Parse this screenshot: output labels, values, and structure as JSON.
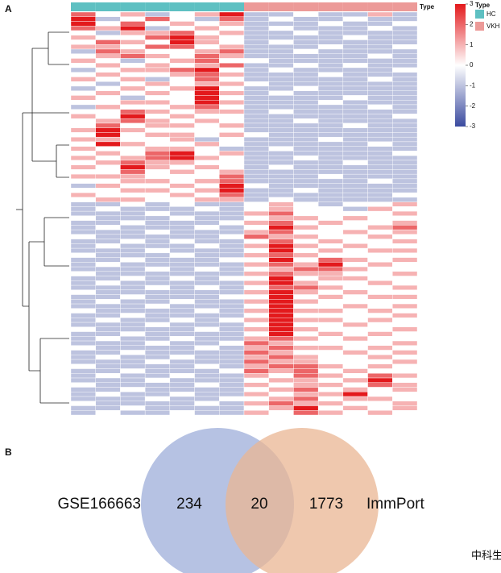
{
  "heatmap": {
    "panel_label": "A",
    "annotation_title": "Type",
    "legend_title": "Type",
    "groups": [
      {
        "name": "HC",
        "color": "#5ec0c2"
      },
      {
        "name": "VKH",
        "color": "#ec9a98"
      }
    ],
    "column_group": [
      0,
      0,
      0,
      0,
      0,
      0,
      0,
      1,
      1,
      1,
      1,
      1,
      1,
      1
    ],
    "scale_lim": [
      -3,
      3
    ],
    "scale_ticks": [
      3,
      2,
      1,
      0,
      -1,
      -2,
      -3
    ],
    "colors": {
      "low": "#3a4a9f",
      "mid": "#ffffff",
      "high": "#e3191c"
    },
    "values": [
      [
        2,
        0,
        1,
        -1,
        0,
        1,
        3,
        -1,
        -1,
        0,
        -1,
        -1,
        1,
        -1
      ],
      [
        3,
        -1,
        0,
        2,
        0,
        -1,
        2,
        -1,
        0,
        -1,
        -1,
        0,
        -1,
        -1
      ],
      [
        3,
        0,
        2,
        0,
        1,
        0,
        1,
        -1,
        -1,
        -1,
        0,
        -1,
        -1,
        0
      ],
      [
        2,
        1,
        3,
        -1,
        0,
        1,
        0,
        -1,
        0,
        -1,
        -1,
        -1,
        0,
        -1
      ],
      [
        0,
        -1,
        1,
        1,
        2,
        0,
        1,
        -1,
        -1,
        0,
        -1,
        -1,
        -1,
        -1
      ],
      [
        1,
        0,
        0,
        2,
        3,
        1,
        0,
        -1,
        -1,
        -1,
        -1,
        0,
        -1,
        -1
      ],
      [
        0,
        2,
        1,
        0,
        3,
        1,
        0,
        -1,
        0,
        -1,
        -1,
        -1,
        -1,
        -1
      ],
      [
        1,
        1,
        0,
        2,
        2,
        0,
        1,
        -1,
        -1,
        -1,
        0,
        -1,
        -1,
        0
      ],
      [
        -1,
        2,
        1,
        0,
        0,
        1,
        2,
        -1,
        -1,
        0,
        -1,
        -1,
        -1,
        -1
      ],
      [
        0,
        1,
        2,
        1,
        0,
        2,
        1,
        -1,
        -1,
        -1,
        -1,
        -1,
        0,
        -1
      ],
      [
        1,
        0,
        -1,
        0,
        1,
        2,
        0,
        0,
        -1,
        -1,
        -1,
        -1,
        -1,
        -1
      ],
      [
        0,
        1,
        0,
        1,
        0,
        1,
        2,
        -1,
        -1,
        0,
        -1,
        0,
        -1,
        -1
      ],
      [
        -1,
        0,
        1,
        1,
        2,
        3,
        0,
        -1,
        0,
        -1,
        -1,
        -1,
        -1,
        0
      ],
      [
        0,
        1,
        0,
        0,
        1,
        2,
        1,
        -1,
        -1,
        -1,
        0,
        -1,
        -1,
        -1
      ],
      [
        1,
        0,
        1,
        -1,
        0,
        2,
        0,
        -1,
        -1,
        -1,
        -1,
        -1,
        0,
        -1
      ],
      [
        0,
        -1,
        0,
        1,
        0,
        1,
        1,
        0,
        -1,
        -1,
        -1,
        -1,
        -1,
        -1
      ],
      [
        -1,
        0,
        1,
        0,
        1,
        3,
        0,
        -1,
        -1,
        0,
        -1,
        -1,
        -1,
        -1
      ],
      [
        0,
        1,
        0,
        1,
        0,
        3,
        1,
        -1,
        0,
        -1,
        -1,
        -1,
        -1,
        -1
      ],
      [
        1,
        0,
        -1,
        0,
        0,
        3,
        0,
        -1,
        -1,
        -1,
        -1,
        0,
        -1,
        -1
      ],
      [
        0,
        0,
        1,
        1,
        0,
        3,
        1,
        -1,
        -1,
        -1,
        0,
        -1,
        -1,
        -1
      ],
      [
        -1,
        1,
        0,
        0,
        1,
        2,
        0,
        -1,
        -1,
        -1,
        -1,
        -1,
        0,
        -1
      ],
      [
        0,
        0,
        2,
        1,
        0,
        1,
        1,
        -1,
        0,
        -1,
        -1,
        -1,
        -1,
        -1
      ],
      [
        1,
        0,
        3,
        0,
        1,
        0,
        0,
        -1,
        -1,
        -1,
        -1,
        -1,
        -1,
        0
      ],
      [
        0,
        1,
        2,
        1,
        0,
        1,
        0,
        -1,
        -1,
        0,
        -1,
        -1,
        -1,
        -1
      ],
      [
        0,
        2,
        0,
        1,
        1,
        0,
        1,
        -1,
        -1,
        -1,
        -1,
        0,
        -1,
        -1
      ],
      [
        1,
        3,
        1,
        0,
        0,
        0,
        0,
        -1,
        -1,
        -1,
        -1,
        -1,
        -1,
        -1
      ],
      [
        0,
        3,
        0,
        1,
        1,
        0,
        1,
        0,
        -1,
        -1,
        -1,
        -1,
        -1,
        -1
      ],
      [
        1,
        1,
        0,
        0,
        1,
        -1,
        0,
        -1,
        -1,
        -1,
        0,
        -1,
        -1,
        -1
      ],
      [
        0,
        3,
        1,
        0,
        0,
        1,
        0,
        -1,
        -1,
        -1,
        -1,
        -1,
        0,
        -1
      ],
      [
        1,
        0,
        0,
        1,
        1,
        0,
        -1,
        -1,
        0,
        -1,
        -1,
        -1,
        -1,
        -1
      ],
      [
        0,
        1,
        0,
        2,
        3,
        0,
        1,
        -1,
        -1,
        -1,
        -1,
        -1,
        -1,
        0
      ],
      [
        1,
        0,
        1,
        2,
        3,
        1,
        0,
        -1,
        -1,
        0,
        -1,
        -1,
        -1,
        -1
      ],
      [
        0,
        1,
        2,
        1,
        1,
        0,
        0,
        -1,
        -1,
        -1,
        -1,
        0,
        -1,
        -1
      ],
      [
        1,
        0,
        3,
        1,
        0,
        1,
        0,
        -1,
        0,
        -1,
        -1,
        -1,
        -1,
        -1
      ],
      [
        0,
        0,
        2,
        0,
        1,
        0,
        1,
        -1,
        -1,
        -1,
        -1,
        -1,
        -1,
        -1
      ],
      [
        1,
        1,
        1,
        0,
        0,
        0,
        2,
        -1,
        -1,
        -1,
        0,
        -1,
        -1,
        -1
      ],
      [
        0,
        0,
        1,
        1,
        0,
        1,
        2,
        -1,
        -1,
        -1,
        -1,
        -1,
        0,
        -1
      ],
      [
        -1,
        1,
        0,
        0,
        1,
        0,
        3,
        0,
        -1,
        -1,
        -1,
        -1,
        -1,
        -1
      ],
      [
        0,
        0,
        1,
        1,
        0,
        1,
        3,
        -1,
        -1,
        0,
        -1,
        -1,
        -1,
        -1
      ],
      [
        1,
        0,
        0,
        0,
        1,
        0,
        2,
        -1,
        -1,
        -1,
        -1,
        -1,
        -1,
        0
      ],
      [
        0,
        1,
        1,
        0,
        0,
        1,
        1,
        -1,
        0,
        -1,
        -1,
        -1,
        -1,
        -1
      ],
      [
        -1,
        -1,
        0,
        -1,
        0,
        -1,
        -1,
        0,
        1,
        0,
        -1,
        0,
        0,
        1
      ],
      [
        -1,
        0,
        -1,
        -1,
        -1,
        0,
        -1,
        0,
        1,
        0,
        0,
        -1,
        1,
        0
      ],
      [
        -1,
        -1,
        -1,
        0,
        -1,
        -1,
        -1,
        1,
        2,
        0,
        0,
        0,
        0,
        1
      ],
      [
        0,
        -1,
        -1,
        -1,
        0,
        -1,
        -1,
        0,
        1,
        1,
        0,
        1,
        0,
        0
      ],
      [
        -1,
        -1,
        0,
        -1,
        -1,
        -1,
        0,
        1,
        2,
        0,
        1,
        0,
        0,
        1
      ],
      [
        -1,
        0,
        -1,
        -1,
        -1,
        0,
        -1,
        0,
        3,
        1,
        0,
        0,
        1,
        2
      ],
      [
        -1,
        -1,
        -1,
        0,
        -1,
        -1,
        -1,
        1,
        2,
        0,
        0,
        1,
        0,
        1
      ],
      [
        0,
        -1,
        -1,
        -1,
        -1,
        -1,
        0,
        2,
        1,
        1,
        0,
        0,
        1,
        0
      ],
      [
        -1,
        -1,
        0,
        -1,
        0,
        -1,
        -1,
        0,
        2,
        0,
        1,
        0,
        0,
        1
      ],
      [
        -1,
        0,
        -1,
        -1,
        -1,
        0,
        -1,
        1,
        3,
        1,
        0,
        1,
        0,
        0
      ],
      [
        -1,
        -1,
        -1,
        0,
        -1,
        -1,
        -1,
        0,
        3,
        0,
        1,
        0,
        1,
        1
      ],
      [
        0,
        -1,
        -1,
        -1,
        0,
        -1,
        -1,
        1,
        2,
        1,
        0,
        0,
        0,
        0
      ],
      [
        -1,
        -1,
        0,
        -1,
        -1,
        -1,
        0,
        0,
        3,
        0,
        2,
        1,
        0,
        1
      ],
      [
        -1,
        0,
        -1,
        -1,
        -1,
        -1,
        -1,
        1,
        2,
        1,
        3,
        0,
        1,
        0
      ],
      [
        -1,
        -1,
        -1,
        0,
        -1,
        0,
        -1,
        0,
        1,
        2,
        2,
        1,
        0,
        0
      ],
      [
        0,
        -1,
        -1,
        -1,
        -1,
        -1,
        -1,
        1,
        2,
        1,
        1,
        0,
        0,
        1
      ],
      [
        -1,
        -1,
        0,
        -1,
        0,
        -1,
        0,
        0,
        3,
        0,
        1,
        1,
        0,
        0
      ],
      [
        -1,
        0,
        -1,
        -1,
        -1,
        -1,
        -1,
        1,
        3,
        1,
        0,
        0,
        1,
        0
      ],
      [
        -1,
        -1,
        -1,
        0,
        -1,
        0,
        -1,
        0,
        2,
        2,
        1,
        0,
        0,
        1
      ],
      [
        0,
        -1,
        -1,
        -1,
        -1,
        -1,
        -1,
        1,
        3,
        1,
        0,
        1,
        0,
        0
      ],
      [
        -1,
        -1,
        0,
        -1,
        -1,
        -1,
        0,
        0,
        3,
        0,
        1,
        0,
        1,
        1
      ],
      [
        -1,
        0,
        -1,
        -1,
        0,
        -1,
        -1,
        1,
        3,
        1,
        0,
        0,
        0,
        0
      ],
      [
        -1,
        -1,
        -1,
        0,
        -1,
        -1,
        -1,
        0,
        3,
        0,
        0,
        1,
        0,
        1
      ],
      [
        0,
        -1,
        -1,
        -1,
        -1,
        0,
        -1,
        1,
        3,
        1,
        1,
        0,
        1,
        0
      ],
      [
        -1,
        -1,
        0,
        -1,
        -1,
        -1,
        -1,
        0,
        3,
        0,
        0,
        0,
        0,
        1
      ],
      [
        -1,
        0,
        -1,
        -1,
        0,
        -1,
        0,
        1,
        3,
        1,
        1,
        0,
        1,
        0
      ],
      [
        -1,
        -1,
        -1,
        0,
        -1,
        -1,
        -1,
        0,
        3,
        0,
        0,
        1,
        0,
        0
      ],
      [
        0,
        -1,
        -1,
        -1,
        -1,
        0,
        -1,
        1,
        3,
        1,
        0,
        0,
        0,
        1
      ],
      [
        -1,
        -1,
        0,
        -1,
        -1,
        -1,
        -1,
        0,
        3,
        0,
        1,
        0,
        1,
        0
      ],
      [
        -1,
        0,
        -1,
        -1,
        0,
        -1,
        -1,
        1,
        2,
        1,
        0,
        1,
        0,
        0
      ],
      [
        -1,
        -1,
        -1,
        0,
        -1,
        -1,
        0,
        2,
        1,
        0,
        0,
        0,
        0,
        1
      ],
      [
        0,
        -1,
        -1,
        -1,
        -1,
        0,
        -1,
        1,
        2,
        1,
        1,
        0,
        1,
        0
      ],
      [
        -1,
        -1,
        0,
        -1,
        -1,
        -1,
        -1,
        2,
        1,
        0,
        0,
        1,
        0,
        1
      ],
      [
        -1,
        0,
        -1,
        -1,
        0,
        -1,
        -1,
        1,
        2,
        1,
        0,
        0,
        1,
        0
      ],
      [
        -1,
        -1,
        -1,
        0,
        -1,
        -1,
        -1,
        2,
        1,
        1,
        0,
        0,
        0,
        1
      ],
      [
        0,
        -1,
        -1,
        -1,
        -1,
        0,
        -1,
        1,
        2,
        2,
        1,
        0,
        1,
        0
      ],
      [
        -1,
        -1,
        0,
        -1,
        -1,
        -1,
        0,
        2,
        1,
        2,
        0,
        1,
        0,
        0
      ],
      [
        -1,
        0,
        -1,
        -1,
        0,
        -1,
        -1,
        1,
        0,
        2,
        1,
        0,
        2,
        1
      ],
      [
        -1,
        -1,
        -1,
        0,
        -1,
        -1,
        -1,
        0,
        1,
        1,
        0,
        1,
        3,
        0
      ],
      [
        0,
        -1,
        -1,
        -1,
        -1,
        0,
        -1,
        1,
        0,
        1,
        1,
        0,
        2,
        1
      ],
      [
        -1,
        -1,
        0,
        -1,
        -1,
        -1,
        -1,
        0,
        1,
        2,
        0,
        1,
        0,
        1
      ],
      [
        -1,
        0,
        -1,
        -1,
        0,
        -1,
        -1,
        1,
        0,
        1,
        1,
        3,
        0,
        0
      ],
      [
        -1,
        -1,
        -1,
        0,
        -1,
        -1,
        0,
        0,
        1,
        2,
        0,
        1,
        1,
        0
      ],
      [
        0,
        -1,
        -1,
        -1,
        -1,
        0,
        -1,
        1,
        2,
        1,
        1,
        0,
        0,
        1
      ],
      [
        -1,
        -1,
        0,
        -1,
        -1,
        -1,
        -1,
        0,
        1,
        3,
        0,
        1,
        0,
        1
      ],
      [
        -1,
        0,
        -1,
        -1,
        0,
        -1,
        -1,
        1,
        0,
        2,
        1,
        0,
        1,
        0
      ]
    ]
  },
  "venn": {
    "panel_label": "B",
    "sets": [
      {
        "name": "GSE166663",
        "color": "#a9b7de"
      },
      {
        "name": "ImmPort",
        "color": "#e9b693"
      }
    ],
    "only_first": 234,
    "both": 20,
    "only_second": 1773
  },
  "watermark": "中科生信"
}
